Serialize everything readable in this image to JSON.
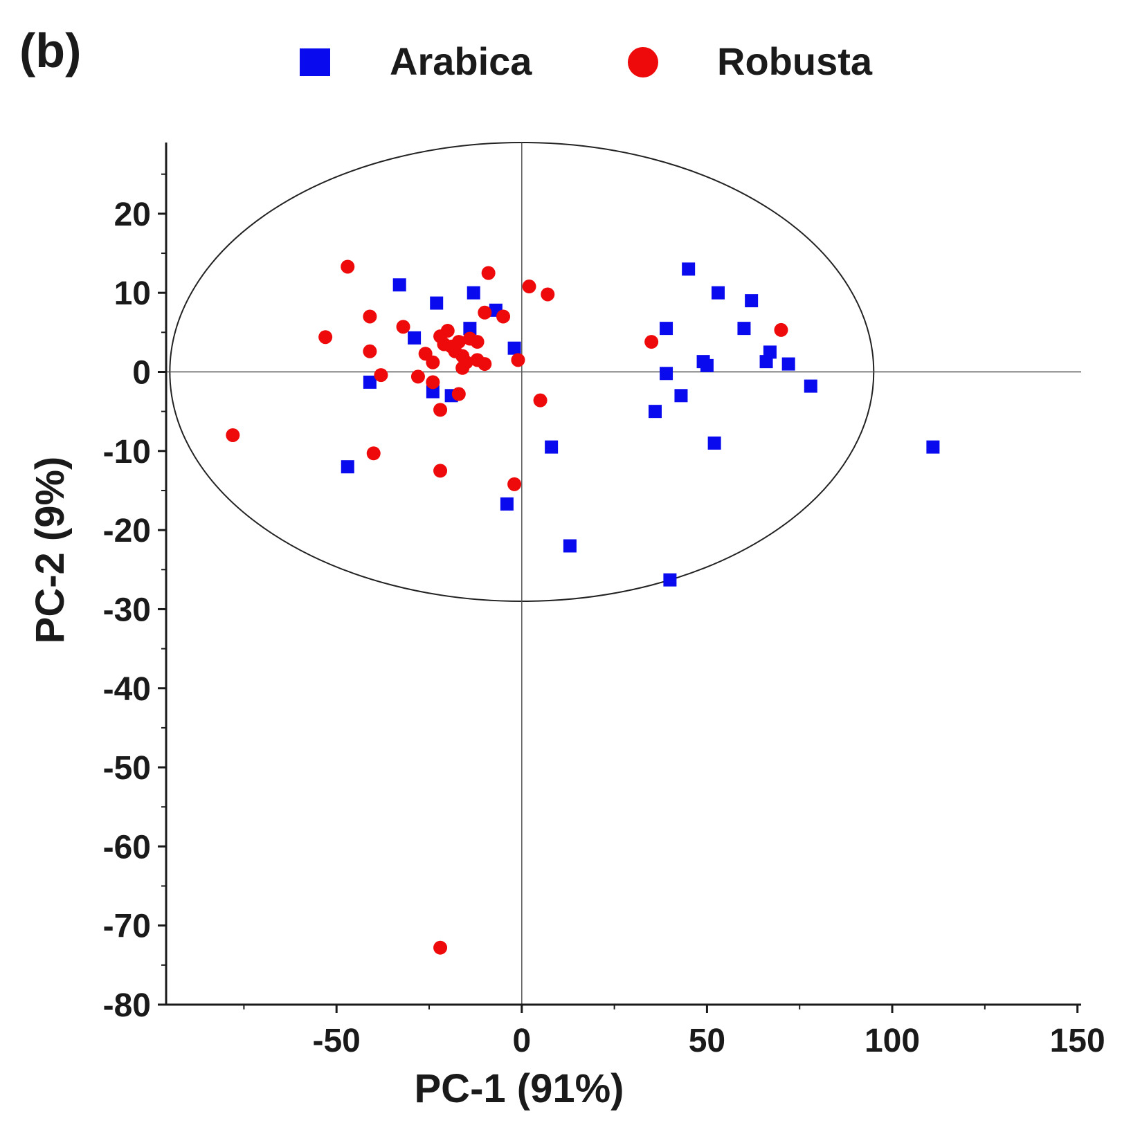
{
  "panel_label": "(b)",
  "colors": {
    "arabica": "#0a0aee",
    "robusta": "#ee0a0a",
    "axis": "#1a1a1a"
  },
  "chart_data": {
    "type": "scatter",
    "title": "",
    "xlabel": "PC-1 (91%)",
    "ylabel": "PC-2 (9%)",
    "xlim": [
      -96,
      151
    ],
    "ylim": [
      -80,
      29
    ],
    "x_ticks": [
      -50,
      0,
      50,
      100,
      150
    ],
    "y_ticks": [
      20,
      10,
      0,
      -10,
      -20,
      -30,
      -40,
      -50,
      -60,
      -70,
      -80
    ],
    "legend": {
      "position": "top",
      "entries": [
        "Arabica",
        "Robusta"
      ]
    },
    "ellipse": {
      "center": [
        0,
        0
      ],
      "radius_x": 95,
      "radius_y": 29
    },
    "series": [
      {
        "name": "Arabica",
        "marker": "square",
        "points": [
          [
            45,
            13
          ],
          [
            53,
            10
          ],
          [
            62,
            9
          ],
          [
            39,
            5.5
          ],
          [
            60,
            5.5
          ],
          [
            67,
            2.5
          ],
          [
            49,
            1.3
          ],
          [
            50,
            0.8
          ],
          [
            66,
            1.3
          ],
          [
            72,
            1
          ],
          [
            39,
            -0.2
          ],
          [
            43,
            -3
          ],
          [
            36,
            -5
          ],
          [
            78,
            -1.8
          ],
          [
            52,
            -9
          ],
          [
            111,
            -9.5
          ],
          [
            8,
            -9.5
          ],
          [
            13,
            -22
          ],
          [
            40,
            -26.3
          ],
          [
            -4,
            -16.7
          ],
          [
            -33,
            11
          ],
          [
            -23,
            8.7
          ],
          [
            -13,
            10
          ],
          [
            -7,
            7.8
          ],
          [
            -14,
            5.5
          ],
          [
            -29,
            4.3
          ],
          [
            -2,
            3
          ],
          [
            -41,
            -1.3
          ],
          [
            -24,
            -2.5
          ],
          [
            -19,
            -3
          ],
          [
            -47,
            -12
          ]
        ]
      },
      {
        "name": "Robusta",
        "marker": "circle",
        "points": [
          [
            -47,
            13.3
          ],
          [
            -9,
            12.5
          ],
          [
            2,
            10.8
          ],
          [
            7,
            9.8
          ],
          [
            -41,
            7
          ],
          [
            -10,
            7.5
          ],
          [
            -5,
            7
          ],
          [
            -53,
            4.4
          ],
          [
            -32,
            5.7
          ],
          [
            -22,
            4.5
          ],
          [
            -20,
            5.2
          ],
          [
            -21,
            3.5
          ],
          [
            -17,
            3.8
          ],
          [
            -14,
            4.2
          ],
          [
            -12,
            3.8
          ],
          [
            -19,
            3.2
          ],
          [
            -41,
            2.6
          ],
          [
            -26,
            2.3
          ],
          [
            -18,
            2.6
          ],
          [
            -16,
            2
          ],
          [
            -15,
            1.2
          ],
          [
            -12,
            1.5
          ],
          [
            -10,
            1
          ],
          [
            -1,
            1.5
          ],
          [
            -24,
            1.2
          ],
          [
            -16,
            0.5
          ],
          [
            -38,
            -0.4
          ],
          [
            -28,
            -0.6
          ],
          [
            -24,
            -1.3
          ],
          [
            -17,
            -2.8
          ],
          [
            5,
            -3.6
          ],
          [
            -22,
            -4.8
          ],
          [
            35,
            3.8
          ],
          [
            70,
            5.3
          ],
          [
            -78,
            -8
          ],
          [
            -40,
            -10.3
          ],
          [
            -22,
            -12.5
          ],
          [
            -2,
            -14.2
          ],
          [
            -22,
            -72.8
          ]
        ]
      }
    ]
  }
}
